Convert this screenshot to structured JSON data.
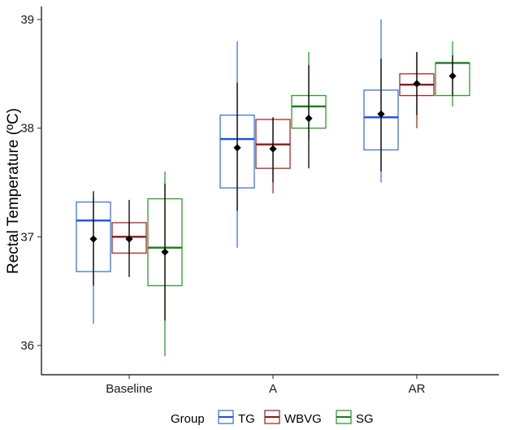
{
  "chart_data": {
    "type": "boxplot",
    "title": "",
    "xlabel": "",
    "ylabel": "Rectal Temperature (ºC)",
    "ylim": [
      35.9,
      39.1
    ],
    "yticks": [
      36,
      37,
      38,
      39
    ],
    "categories": [
      "Baseline",
      "A",
      "AR"
    ],
    "legend": {
      "title": "Group",
      "position": "bottom"
    },
    "series": [
      {
        "name": "TG",
        "color": "#4472D9",
        "median_color": "#1F4FD8",
        "boxes": [
          {
            "min": 36.2,
            "q1": 36.68,
            "median": 37.15,
            "q3": 37.32,
            "max": 37.36,
            "mean": 36.98,
            "sd_low": 36.55,
            "sd_high": 37.42
          },
          {
            "min": 36.9,
            "q1": 37.45,
            "median": 37.9,
            "q3": 38.12,
            "max": 38.8,
            "mean": 37.82,
            "sd_low": 37.24,
            "sd_high": 38.42
          },
          {
            "min": 37.5,
            "q1": 37.8,
            "median": 38.1,
            "q3": 38.35,
            "max": 39.0,
            "mean": 38.13,
            "sd_low": 37.6,
            "sd_high": 38.64
          }
        ]
      },
      {
        "name": "WBVG",
        "color": "#A52A2A",
        "median_color": "#8B1A1A",
        "boxes": [
          {
            "min": 36.85,
            "q1": 36.85,
            "median": 37.0,
            "q3": 37.13,
            "max": 37.13,
            "mean": 36.98,
            "sd_low": 36.63,
            "sd_high": 37.34
          },
          {
            "min": 37.4,
            "q1": 37.63,
            "median": 37.85,
            "q3": 38.08,
            "max": 38.1,
            "mean": 37.81,
            "sd_low": 37.5,
            "sd_high": 38.1
          },
          {
            "min": 38.0,
            "q1": 38.3,
            "median": 38.4,
            "q3": 38.5,
            "max": 38.7,
            "mean": 38.41,
            "sd_low": 38.12,
            "sd_high": 38.7
          }
        ]
      },
      {
        "name": "SG",
        "color": "#2E9B2E",
        "median_color": "#1E7A1E",
        "boxes": [
          {
            "min": 35.9,
            "q1": 36.55,
            "median": 36.9,
            "q3": 37.35,
            "max": 37.6,
            "mean": 36.86,
            "sd_low": 36.23,
            "sd_high": 37.49
          },
          {
            "min": 37.9,
            "q1": 38.0,
            "median": 38.2,
            "q3": 38.3,
            "max": 38.7,
            "mean": 38.09,
            "sd_low": 37.63,
            "sd_high": 38.58
          },
          {
            "min": 38.2,
            "q1": 38.3,
            "median": 38.6,
            "q3": 38.6,
            "max": 38.8,
            "mean": 38.48,
            "sd_low": 38.3,
            "sd_high": 38.67
          }
        ]
      }
    ]
  }
}
